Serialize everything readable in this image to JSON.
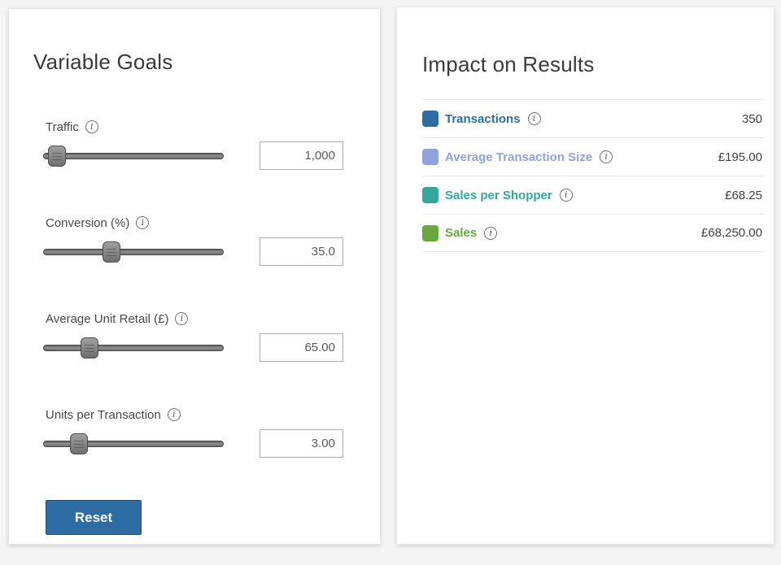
{
  "left_panel": {
    "title": "Variable Goals",
    "reset_label": "Reset",
    "sliders": [
      {
        "label": "Traffic",
        "value": "1,000",
        "handle_left": "7.3%"
      },
      {
        "label": "Conversion (%)",
        "value": "35.0",
        "handle_left": "37.7%"
      },
      {
        "label": "Average Unit Retail (£)",
        "value": "65.00",
        "handle_left": "25.5%"
      },
      {
        "label": "Units per Transaction",
        "value": "3.00",
        "handle_left": "19.5%"
      }
    ]
  },
  "right_panel": {
    "title": "Impact on Results",
    "rows": [
      {
        "label": "Transactions",
        "value": "350",
        "color": "#2E6DA4"
      },
      {
        "label": "Average Transaction Size",
        "value": "£195.00",
        "color": "#8FA2E0"
      },
      {
        "label": "Sales per Shopper",
        "value": "£68.25",
        "color": "#31A79B"
      },
      {
        "label": "Sales",
        "value": "£68,250.00",
        "color": "#69A83C"
      }
    ]
  },
  "icons": {
    "info_glyph": "i"
  },
  "colors": {
    "accent_blue": "#2E6DA4",
    "button_border": "#1f4e79"
  }
}
